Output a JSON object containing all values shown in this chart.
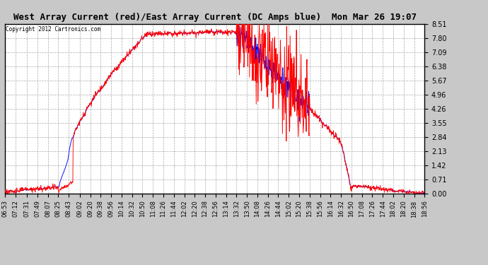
{
  "title": "West Array Current (red)/East Array Current (DC Amps blue)  Mon Mar 26 19:07",
  "copyright": "Copyright 2012 Cartronics.com",
  "y_ticks": [
    0.0,
    0.71,
    1.42,
    2.13,
    2.84,
    3.55,
    4.26,
    4.96,
    5.67,
    6.38,
    7.09,
    7.8,
    8.51
  ],
  "y_min": 0.0,
  "y_max": 8.51,
  "background_color": "#c8c8c8",
  "plot_bg_color": "#ffffff",
  "grid_color": "#aaaaaa",
  "line_red": "red",
  "line_blue": "blue",
  "title_fontsize": 9,
  "x_labels": [
    "06:53",
    "07:12",
    "07:31",
    "07:49",
    "08:07",
    "08:25",
    "08:43",
    "09:02",
    "09:20",
    "09:38",
    "09:56",
    "10:14",
    "10:32",
    "10:50",
    "11:08",
    "11:26",
    "11:44",
    "12:02",
    "12:20",
    "12:38",
    "12:56",
    "13:14",
    "13:32",
    "13:50",
    "14:08",
    "14:26",
    "14:44",
    "15:02",
    "15:20",
    "15:38",
    "15:56",
    "16:14",
    "16:32",
    "16:50",
    "17:08",
    "17:26",
    "17:44",
    "18:02",
    "18:20",
    "18:38",
    "18:56"
  ]
}
